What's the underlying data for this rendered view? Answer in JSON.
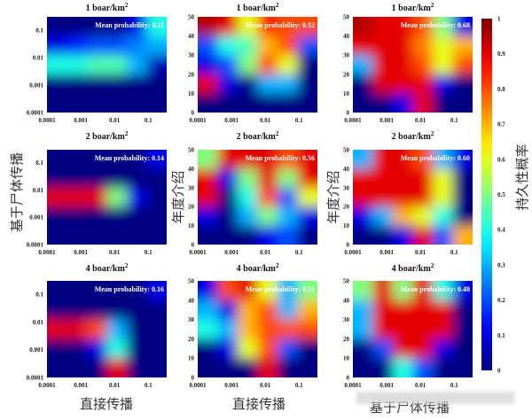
{
  "chart_data": {
    "type": "heatmap",
    "colorbar": {
      "label": "持久性概率",
      "range": [
        0,
        1
      ],
      "ticks": [
        0,
        0.1,
        0.2,
        0.3,
        0.4,
        0.5,
        0.6,
        0.7,
        0.8,
        0.9,
        1
      ],
      "tick_labels": [
        "0",
        "0.1",
        "0.2",
        "0.3",
        "0.4",
        "0.5",
        "0.6",
        "0.7",
        "0.8",
        "0.9",
        "1"
      ],
      "colormap": "jet"
    },
    "row_label_left": "基于尸体传播",
    "column_xlabels": [
      "直接传播",
      "直接传播",
      "基于尸体传播"
    ],
    "x_axis": {
      "scale": "log",
      "range": [
        0.0001,
        0.35
      ],
      "ticks": [
        0.0001,
        0.001,
        0.01,
        0.1
      ],
      "tick_labels": [
        "0.0001",
        "0.001",
        "0.01",
        "0.1"
      ]
    },
    "y_axis_log": {
      "scale": "log",
      "range": [
        0.0001,
        0.3
      ],
      "ticks": [
        0.0001,
        0.001,
        0.01,
        0.1
      ],
      "tick_labels": [
        "0.0001",
        "0.001",
        "0.01",
        "0.1"
      ]
    },
    "y_axis_linear": {
      "label": "年度介绍",
      "scale": "linear",
      "range": [
        0,
        50
      ],
      "ticks": [
        0,
        10,
        20,
        30,
        40,
        50
      ],
      "tick_labels": [
        "0",
        "10",
        "20",
        "30",
        "40",
        "50"
      ]
    },
    "grid_note": "values: approximate probability grid, rows from top (high y) to bottom (low y), columns from low x to high x",
    "panels": [
      {
        "title": "1 boar/km",
        "sup": "2",
        "mean_label": "Mean probability: 0.11",
        "yaxis": "log",
        "ylabel": "",
        "values": [
          [
            0,
            0,
            0,
            0,
            0.1,
            0.4
          ],
          [
            0.1,
            0.15,
            0.2,
            0.2,
            0.25,
            0.3
          ],
          [
            0.4,
            0.4,
            0.45,
            0.45,
            0.3,
            0.05
          ],
          [
            0,
            0,
            0,
            0,
            0,
            0
          ],
          [
            0,
            0,
            0,
            0,
            0,
            0
          ]
        ]
      },
      {
        "title": "1 boar/km",
        "sup": "2",
        "mean_label": "Mean probability: 0.52",
        "yaxis": "linear",
        "ylabel": "",
        "values": [
          [
            0.95,
            0.9,
            0.6,
            0.85,
            0.8,
            0.8
          ],
          [
            0.2,
            0.4,
            0.45,
            0.7,
            0.8,
            0.2
          ],
          [
            0.1,
            0.2,
            0.5,
            0.8,
            0.6,
            0
          ],
          [
            0.9,
            0.1,
            0,
            0.3,
            0.3,
            0
          ],
          [
            0,
            0,
            0,
            0,
            0,
            0
          ]
        ]
      },
      {
        "title": "1 boar/km",
        "sup": "2",
        "mean_label": "Mean probability: 0.68",
        "yaxis": "linear",
        "ylabel": "",
        "values": [
          [
            0.95,
            0.9,
            0.9,
            0.8,
            0.5,
            0.1
          ],
          [
            0.9,
            0.9,
            0.9,
            0.75,
            0.6,
            0.7
          ],
          [
            0.3,
            0.9,
            0.9,
            0.8,
            0.6,
            0.8
          ],
          [
            0,
            0.9,
            0.9,
            0.9,
            0.1,
            0
          ],
          [
            0,
            0,
            0.1,
            0.9,
            0,
            0
          ]
        ]
      },
      {
        "title": "2 boar/km",
        "sup": "2",
        "mean_label": "Mean probability: 0.14",
        "yaxis": "log",
        "ylabel": "",
        "values": [
          [
            0,
            0,
            0,
            0,
            0,
            0.1
          ],
          [
            0,
            0,
            0,
            0,
            0,
            0
          ],
          [
            0.9,
            0.9,
            0.9,
            0.5,
            0.1,
            0
          ],
          [
            0,
            0,
            0,
            0,
            0,
            0
          ],
          [
            0,
            0,
            0,
            0,
            0,
            0
          ]
        ]
      },
      {
        "title": "2 boar/km",
        "sup": "2",
        "mean_label": "Mean probability: 0.56",
        "yaxis": "linear",
        "ylabel": "年度介绍",
        "values": [
          [
            0.5,
            0.9,
            0.9,
            0.9,
            0.8,
            0.9
          ],
          [
            0.9,
            0.1,
            0.5,
            0.9,
            0.5,
            0.9
          ],
          [
            0.9,
            0,
            0.4,
            0.8,
            0.2,
            0.6
          ],
          [
            0.1,
            0,
            0.3,
            0.5,
            0.3,
            0.1
          ],
          [
            0,
            0,
            0,
            0.1,
            0.2,
            0
          ]
        ]
      },
      {
        "title": "2 boar/km",
        "sup": "2",
        "mean_label": "Mean probability: 0.60",
        "yaxis": "linear",
        "ylabel": "年度介绍",
        "values": [
          [
            0.3,
            0.9,
            0.9,
            0.8,
            0.3,
            0.1
          ],
          [
            0.9,
            0.9,
            0.9,
            0.9,
            0.6,
            0
          ],
          [
            0.9,
            0.9,
            0.9,
            0.9,
            0.6,
            0
          ],
          [
            0.1,
            0.3,
            0.7,
            0.6,
            0.4,
            0
          ],
          [
            0,
            0,
            0.1,
            0.9,
            0.2,
            0.7
          ]
        ]
      },
      {
        "title": "4 boar/km",
        "sup": "2",
        "mean_label": "Mean probability: 0.16",
        "yaxis": "log",
        "ylabel": "",
        "values": [
          [
            0,
            0,
            0,
            0,
            0,
            0.1
          ],
          [
            0,
            0,
            0,
            0,
            0,
            0
          ],
          [
            0.9,
            0.9,
            0.8,
            0.3,
            0,
            0
          ],
          [
            0,
            0,
            0.1,
            0.4,
            0,
            0
          ],
          [
            0,
            0,
            0,
            0.9,
            0,
            0
          ]
        ]
      },
      {
        "title": "4 boar/km",
        "sup": "2",
        "mean_label": "Mean probability: 0.51",
        "yaxis": "linear",
        "ylabel": "",
        "values": [
          [
            0.1,
            0.8,
            0.9,
            0.6,
            0.3,
            0.5
          ],
          [
            0.3,
            0.1,
            0.7,
            0.8,
            0.3,
            0.7
          ],
          [
            0.4,
            0.3,
            0.7,
            0.8,
            0.8,
            0.8
          ],
          [
            0,
            0.1,
            0.6,
            0.8,
            0.2,
            0
          ],
          [
            0,
            0,
            0,
            0.9,
            0,
            0
          ]
        ]
      },
      {
        "title": "4 boar/km",
        "sup": "2",
        "mean_label": "Mean probability: 0.48",
        "yaxis": "linear",
        "ylabel": "",
        "values": [
          [
            0.5,
            0.9,
            0.5,
            0.9,
            0.4,
            0.1
          ],
          [
            0.3,
            0.9,
            0.9,
            0.9,
            0.9,
            0
          ],
          [
            0.3,
            0.9,
            0.9,
            0.9,
            0.9,
            0
          ],
          [
            0,
            0.2,
            0.9,
            0.9,
            0.1,
            0
          ],
          [
            0,
            0,
            0.4,
            0.2,
            0,
            0
          ]
        ]
      }
    ]
  }
}
